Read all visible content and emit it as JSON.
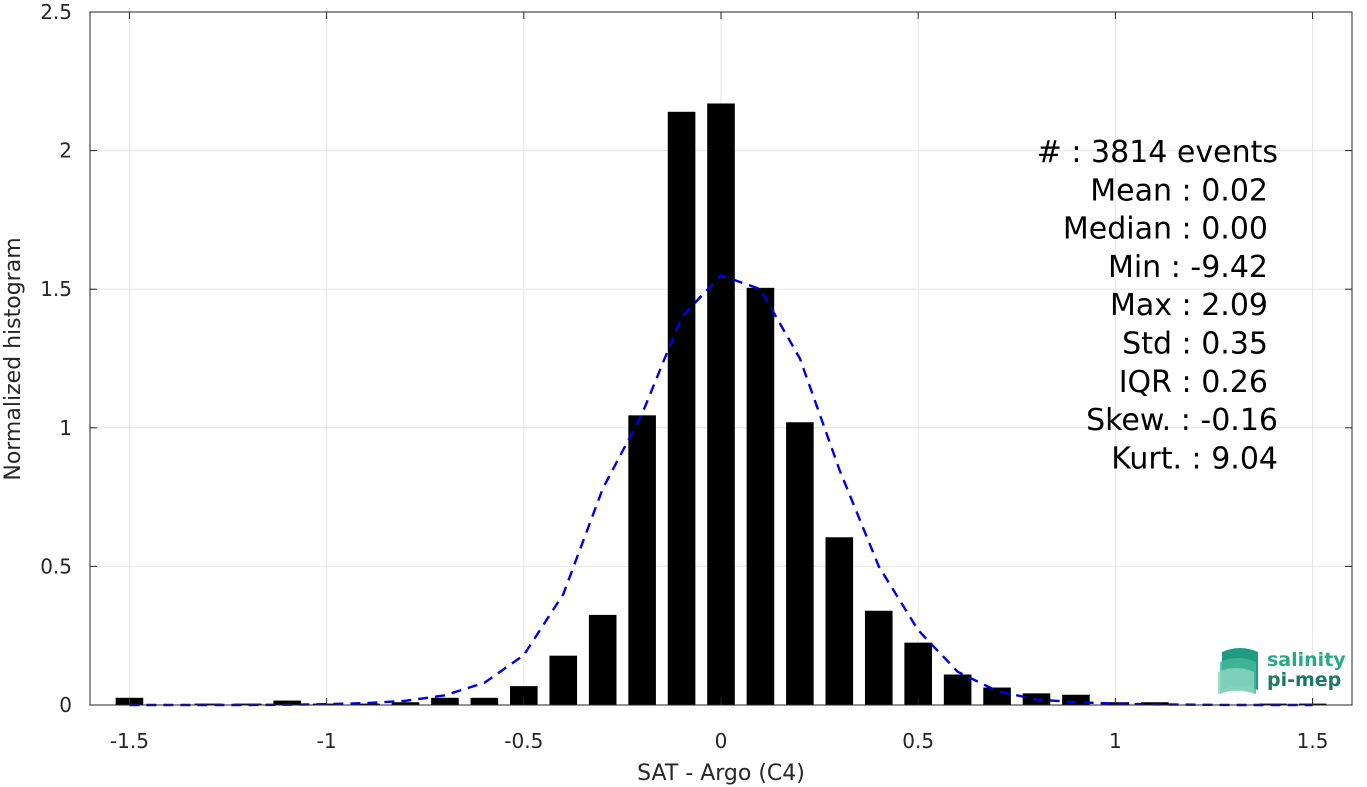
{
  "chart_data": {
    "type": "bar",
    "xlabel": "SAT - Argo (C4)",
    "ylabel": "Normalized histogram",
    "xlim": [
      -1.6,
      1.6
    ],
    "ylim": [
      0,
      2.5
    ],
    "grid": true,
    "x_ticks": [
      -1.5,
      -1,
      -0.5,
      0,
      0.5,
      1,
      1.5
    ],
    "x_tick_labels": [
      "-1.5",
      "-1",
      "-0.5",
      "0",
      "0.5",
      "1",
      "1.5"
    ],
    "y_ticks": [
      0,
      0.5,
      1,
      1.5,
      2,
      2.5
    ],
    "y_tick_labels": [
      "0",
      "0.5",
      "1",
      "1.5",
      "2",
      "2.5"
    ],
    "bar_width": 0.07,
    "bars": {
      "x": [
        -1.5,
        -1.4,
        -1.3,
        -1.2,
        -1.1,
        -1.0,
        -0.9,
        -0.8,
        -0.7,
        -0.6,
        -0.5,
        -0.4,
        -0.3,
        -0.2,
        -0.1,
        0.0,
        0.1,
        0.2,
        0.3,
        0.4,
        0.5,
        0.6,
        0.7,
        0.8,
        0.9,
        1.0,
        1.1,
        1.2,
        1.3,
        1.4,
        1.5
      ],
      "values": [
        0.026,
        0.0,
        0.005,
        0.005,
        0.016,
        0.005,
        0.005,
        0.01,
        0.026,
        0.026,
        0.068,
        0.178,
        0.325,
        1.045,
        2.14,
        2.17,
        1.505,
        1.02,
        0.605,
        0.34,
        0.225,
        0.11,
        0.063,
        0.042,
        0.037,
        0.01,
        0.01,
        0.0,
        0.0,
        0.005,
        0.005
      ],
      "color": "#000000"
    },
    "fit_curve": {
      "style": "dashed",
      "color": "#0000dd",
      "x": [
        -1.5,
        -1.4,
        -1.3,
        -1.2,
        -1.1,
        -1.0,
        -0.9,
        -0.8,
        -0.7,
        -0.6,
        -0.5,
        -0.4,
        -0.3,
        -0.2,
        -0.1,
        0.0,
        0.1,
        0.2,
        0.3,
        0.4,
        0.5,
        0.6,
        0.7,
        0.8,
        0.9,
        1.0,
        1.1,
        1.2,
        1.3,
        1.4,
        1.5
      ],
      "y": [
        0.0,
        0.0,
        0.0,
        0.0,
        0.001,
        0.003,
        0.007,
        0.015,
        0.035,
        0.08,
        0.18,
        0.4,
        0.78,
        1.05,
        1.4,
        1.55,
        1.5,
        1.25,
        0.85,
        0.5,
        0.27,
        0.12,
        0.05,
        0.02,
        0.01,
        0.005,
        0.002,
        0.001,
        0.0,
        0.0,
        0.0
      ]
    },
    "annotations": [
      {
        "label": "#",
        "value": ": 3814 events"
      },
      {
        "label": "Mean",
        "value": ": 0.02"
      },
      {
        "label": "Median",
        "value": ": 0.00"
      },
      {
        "label": "Min",
        "value": ": -9.42"
      },
      {
        "label": "Max",
        "value": ": 2.09"
      },
      {
        "label": "Std",
        "value": ": 0.35"
      },
      {
        "label": "IQR",
        "value": ": 0.26"
      },
      {
        "label": "Skew.",
        "value": ": -0.16"
      },
      {
        "label": "Kurt.",
        "value": ": 9.04"
      }
    ]
  },
  "logo": {
    "line1": "salinity",
    "line2": "pi-mep",
    "color1": "#2aa987",
    "color2": "#1c7a63"
  },
  "colors": {
    "grid": "#e6e6e6",
    "axis": "#262626",
    "background": "#ffffff"
  }
}
